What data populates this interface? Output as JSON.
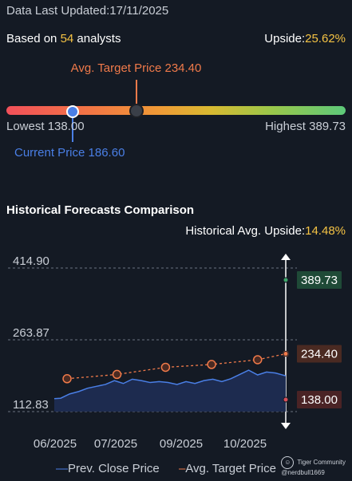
{
  "header": {
    "updated_label": "Data Last Updated:",
    "updated_date": "17/11/2025",
    "based_on_prefix": "Based on",
    "analyst_count": "54",
    "analysts_suffix": "analysts",
    "upside_label": "Upside:",
    "upside_value": "25.62%"
  },
  "price_bar": {
    "avg_target_label": "Avg. Target Price 234.40",
    "lowest_label": "Lowest 138.00",
    "highest_label": "Highest 389.73",
    "current_label": "Current Price 186.60"
  },
  "historical": {
    "title": "Historical Forecasts Comparison",
    "upside_label": "Historical Avg. Upside:",
    "upside_value": "14.48%"
  },
  "legend": {
    "prev_close": "Prev. Close Price",
    "avg_target": "Avg. Target Price"
  },
  "watermark": {
    "line1": "Tiger Community",
    "line2": "@nerdbull1669"
  },
  "colors": {
    "blue": "#4a7fe6",
    "orange": "#f07a4a",
    "yellow": "#f5c344",
    "green_box": "#1f4a37",
    "orange_box": "#4a2a22",
    "red_box": "#4a2325"
  },
  "chart_data": {
    "type": "line",
    "x_ticks": [
      "06/2025",
      "07/2025",
      "09/2025",
      "10/2025"
    ],
    "y_ticks": [
      414.9,
      263.87,
      112.83
    ],
    "ylim": [
      112.83,
      414.9
    ],
    "series": [
      {
        "name": "Prev. Close Price",
        "x": [
          "2025-05-20",
          "2025-05-25",
          "2025-06-01",
          "2025-06-08",
          "2025-06-15",
          "2025-06-22",
          "2025-06-29",
          "2025-07-06",
          "2025-07-13",
          "2025-07-20",
          "2025-07-27",
          "2025-08-03",
          "2025-08-10",
          "2025-08-17",
          "2025-08-24",
          "2025-08-31",
          "2025-09-07",
          "2025-09-14",
          "2025-09-21",
          "2025-09-28",
          "2025-10-05",
          "2025-10-12",
          "2025-10-19",
          "2025-10-26",
          "2025-11-02",
          "2025-11-09",
          "2025-11-17"
        ],
        "values": [
          140,
          141,
          150,
          155,
          162,
          166,
          170,
          178,
          172,
          181,
          178,
          174,
          176,
          174,
          170,
          176,
          172,
          178,
          181,
          176,
          182,
          191,
          200,
          190,
          196,
          194,
          188
        ]
      },
      {
        "name": "Avg. Target Price",
        "x": [
          "2025-05-30",
          "2025-07-08",
          "2025-08-15",
          "2025-09-20",
          "2025-10-26",
          "2025-11-17"
        ],
        "values": [
          182,
          191,
          206,
          212,
          222,
          234.4
        ]
      }
    ],
    "end_labels": [
      {
        "label": "389.73",
        "value": 389.73,
        "kind": "high"
      },
      {
        "label": "234.40",
        "value": 234.4,
        "kind": "avg"
      },
      {
        "label": "138.00",
        "value": 138.0,
        "kind": "low"
      }
    ]
  }
}
